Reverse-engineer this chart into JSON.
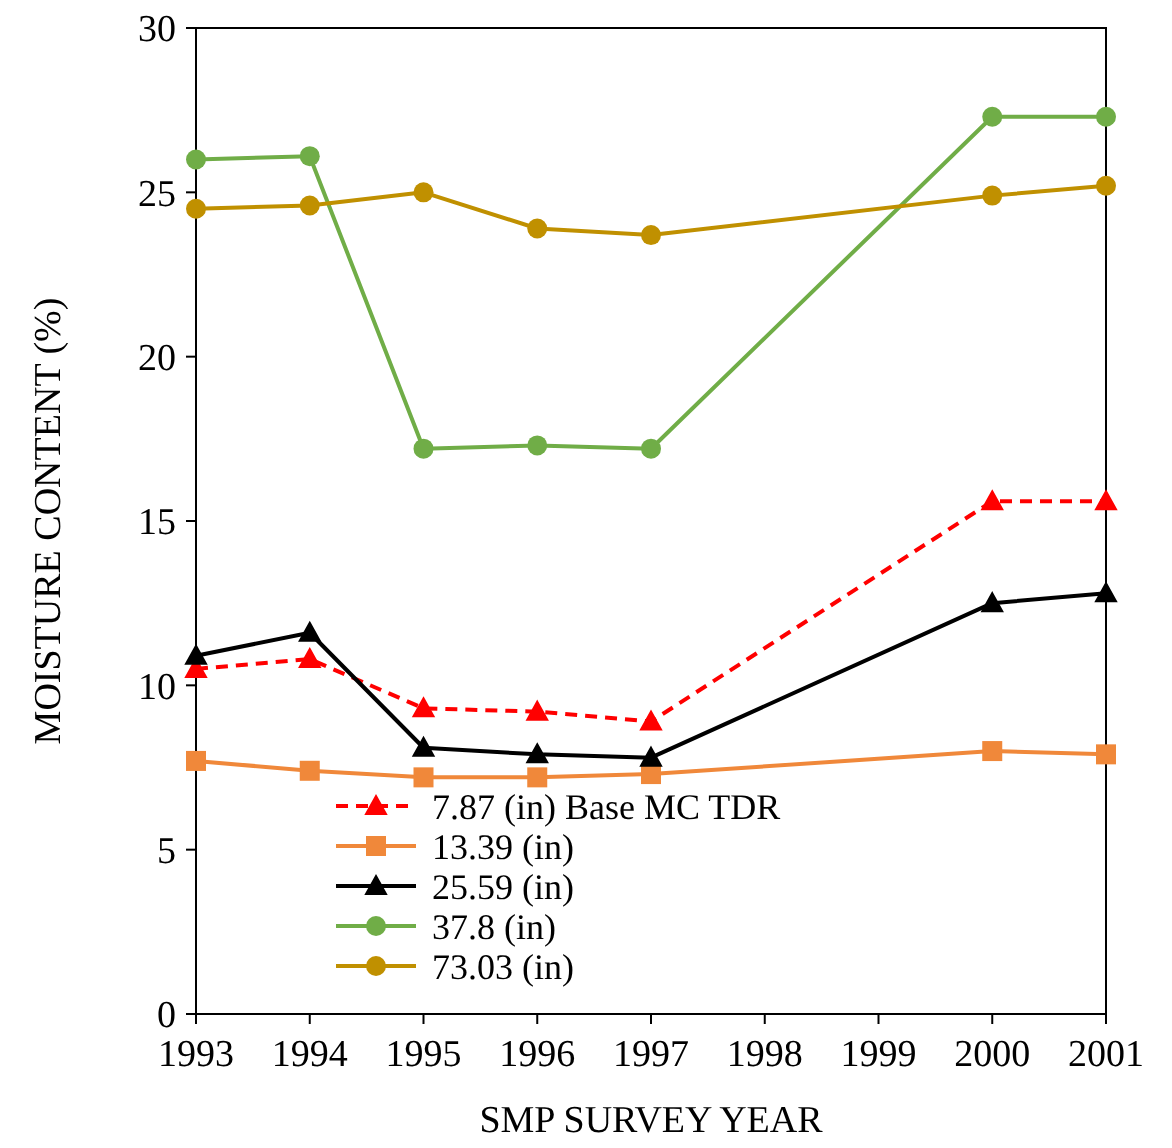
{
  "chart_data": {
    "type": "line",
    "xlabel": "SMP SURVEY  YEAR",
    "ylabel": "MOISTURE CONTENT (%)",
    "x": [
      1993,
      1994,
      1995,
      1996,
      1997,
      2000,
      2001
    ],
    "xlim": [
      1993,
      2001
    ],
    "xticks": [
      1993,
      1994,
      1995,
      1996,
      1997,
      1998,
      1999,
      2000,
      2001
    ],
    "ylim": [
      0,
      30
    ],
    "yticks": [
      0,
      5,
      10,
      15,
      20,
      25,
      30
    ],
    "grid": false,
    "legend": "bottom left",
    "series": [
      {
        "name": "7.87 (in) Base MC TDR",
        "color": "#ff0000",
        "marker": "triangle",
        "line_style": "dashed",
        "values": [
          10.5,
          10.8,
          9.3,
          9.2,
          8.9,
          15.6,
          15.6
        ]
      },
      {
        "name": "13.39 (in)",
        "color": "#f0883a",
        "marker": "square",
        "line_style": "solid",
        "values": [
          7.7,
          7.4,
          7.2,
          7.2,
          7.3,
          8.0,
          7.9
        ]
      },
      {
        "name": "25.59 (in)",
        "color": "#000000",
        "marker": "triangle",
        "line_style": "solid",
        "values": [
          10.9,
          11.6,
          8.1,
          7.9,
          7.8,
          12.5,
          12.8
        ]
      },
      {
        "name": "37.8 (in)",
        "color": "#70ad47",
        "marker": "circle",
        "line_style": "solid",
        "values": [
          26.0,
          26.1,
          17.2,
          17.3,
          17.2,
          27.3,
          27.3
        ]
      },
      {
        "name": "73.03 (in)",
        "color": "#c09000",
        "marker": "circle",
        "line_style": "solid",
        "values": [
          24.5,
          24.6,
          25.0,
          23.9,
          23.7,
          24.9,
          25.2
        ]
      }
    ]
  }
}
